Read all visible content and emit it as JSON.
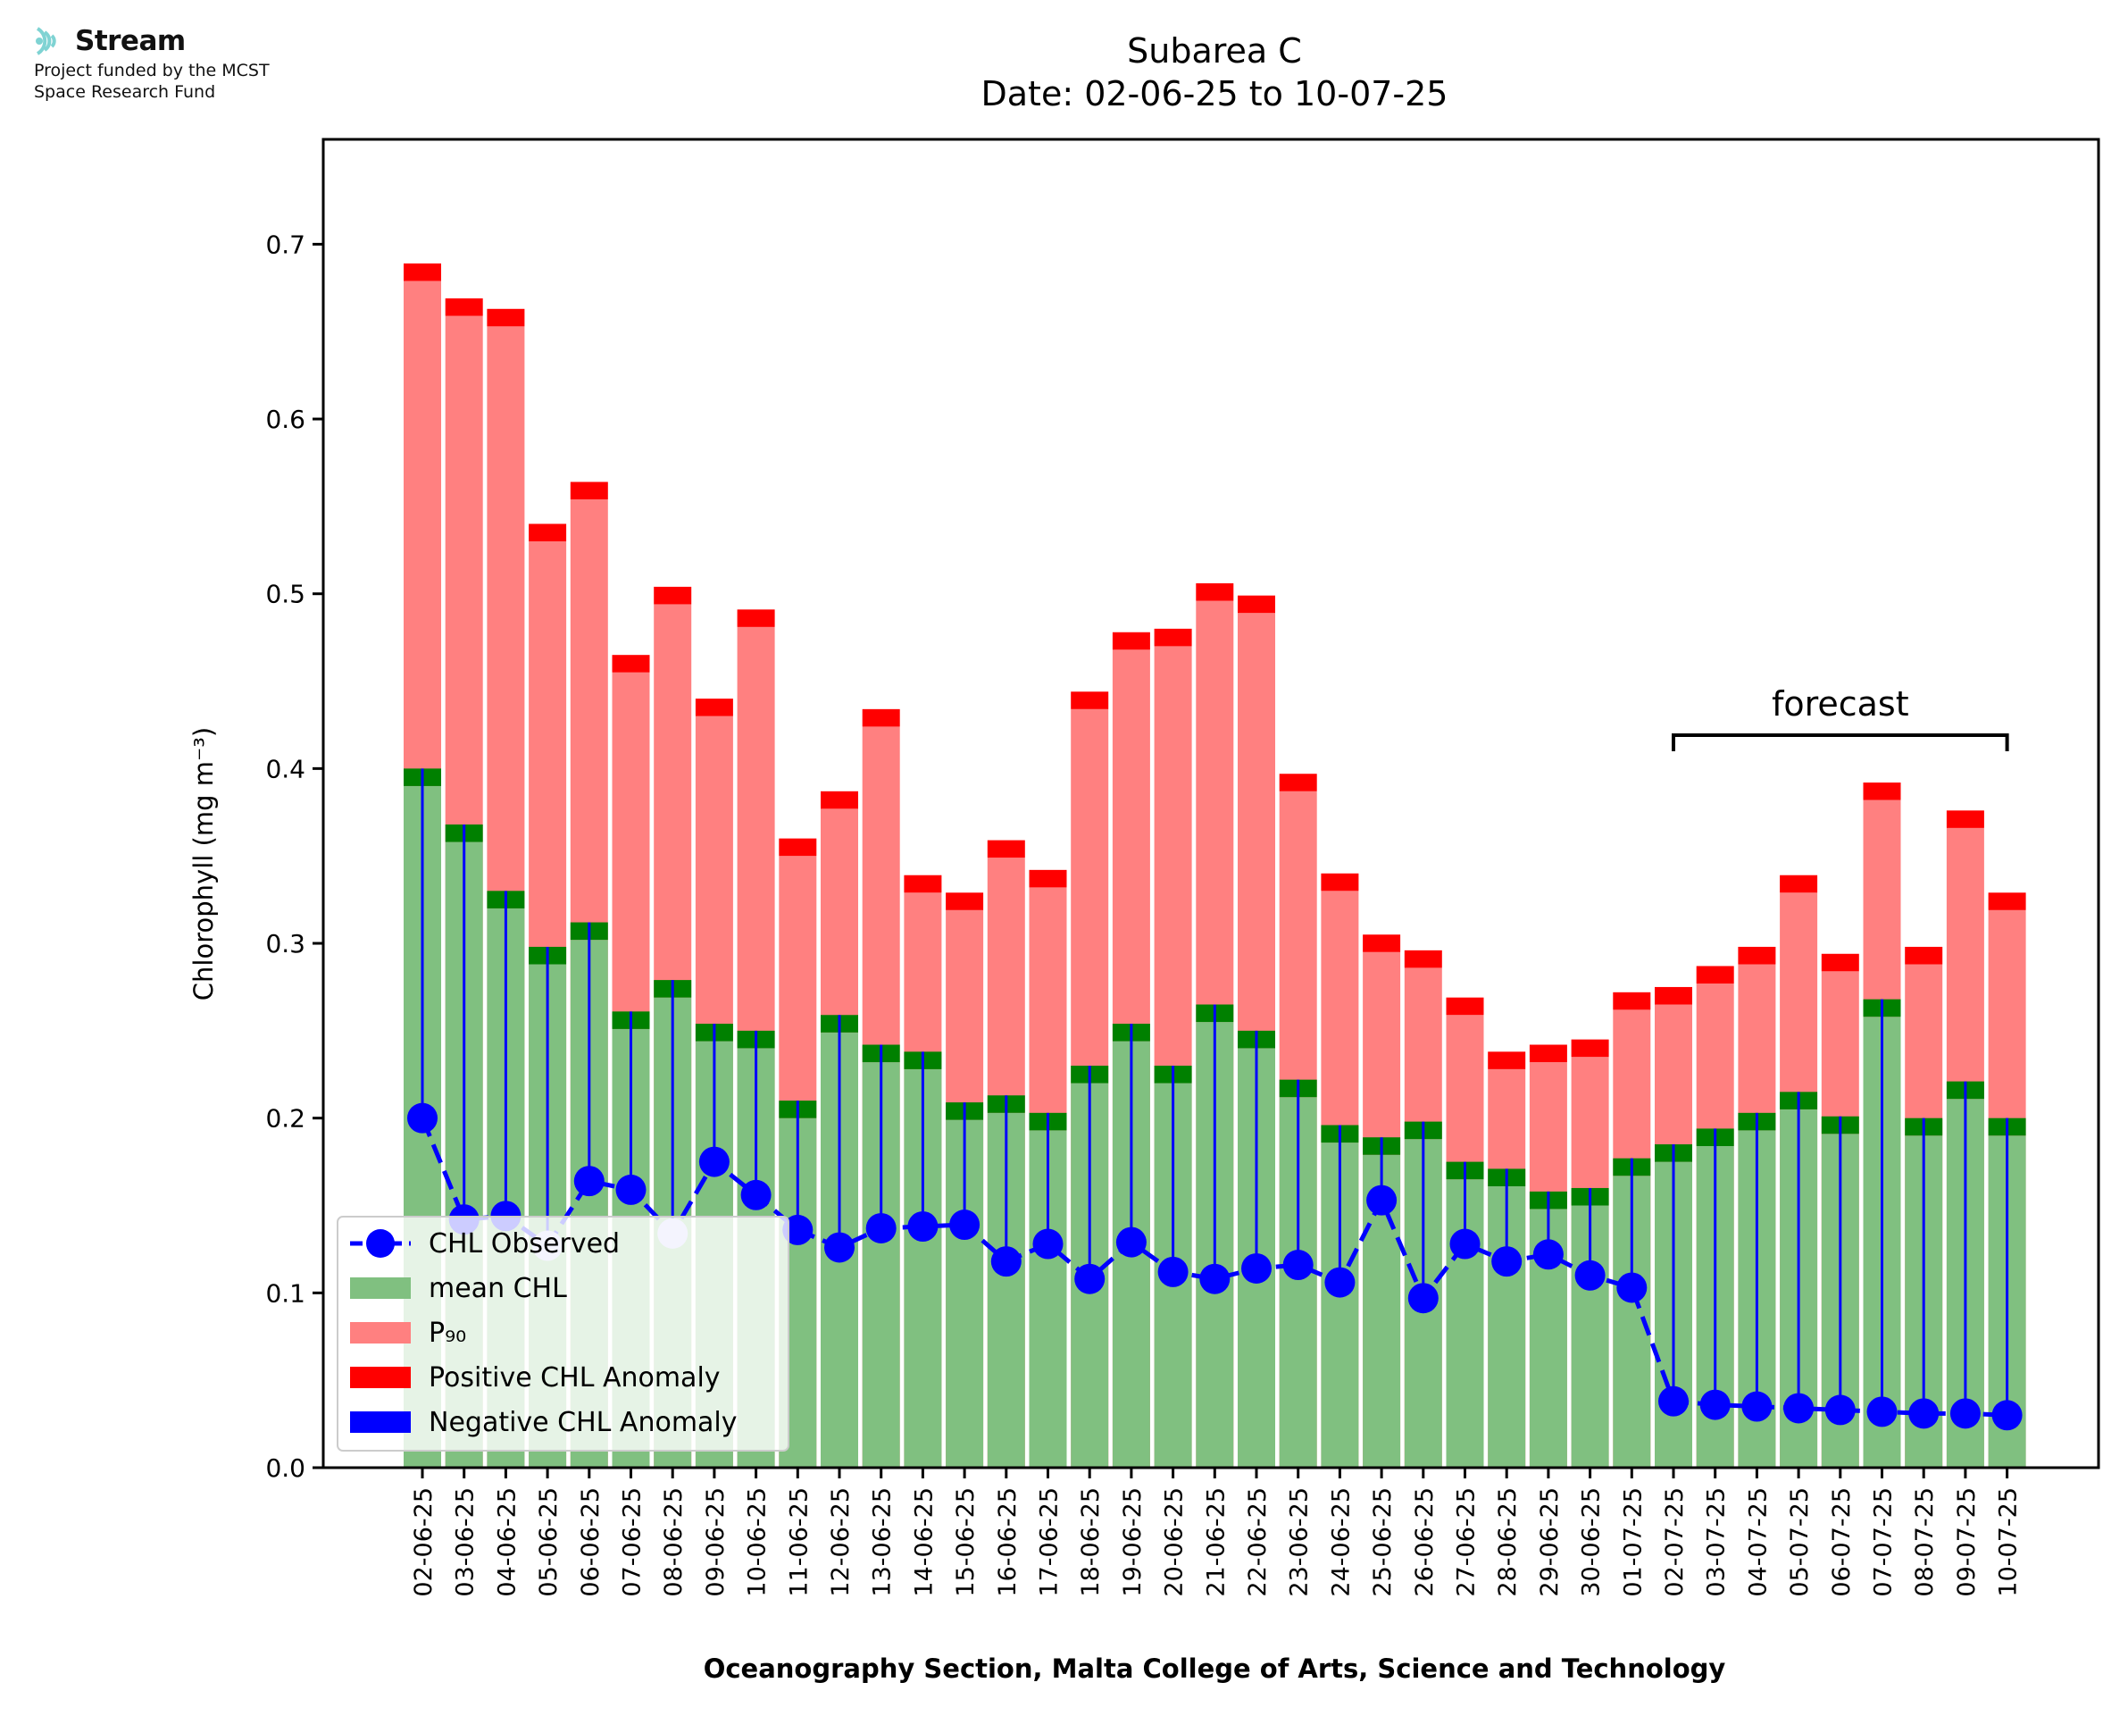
{
  "logo": {
    "name": "Stream",
    "line1": "Project funded by the MCST",
    "line2": "Space Research Fund",
    "color": "#7fd3d3"
  },
  "chart_data": {
    "type": "bar",
    "title": "Subarea C",
    "subtitle": "Date: 02-06-25 to 10-07-25",
    "xlabel": "Oceanography Section, Malta College of Arts, Science and Technology",
    "ylabel": "Chlorophyll (mg m⁻³)",
    "ylim": [
      0,
      0.76
    ],
    "yticks": [
      0.0,
      0.1,
      0.2,
      0.3,
      0.4,
      0.5,
      0.6,
      0.7
    ],
    "ytick_labels": [
      "0.0",
      "0.1",
      "0.2",
      "0.3",
      "0.4",
      "0.5",
      "0.6",
      "0.7"
    ],
    "grid": false,
    "legend_position": "lower-left",
    "forecast_label": "forecast",
    "forecast_range": [
      "02-07-25",
      "10-07-25"
    ],
    "categories": [
      "02-06-25",
      "03-06-25",
      "04-06-25",
      "05-06-25",
      "06-06-25",
      "07-06-25",
      "08-06-25",
      "09-06-25",
      "10-06-25",
      "11-06-25",
      "12-06-25",
      "13-06-25",
      "14-06-25",
      "15-06-25",
      "16-06-25",
      "17-06-25",
      "18-06-25",
      "19-06-25",
      "20-06-25",
      "21-06-25",
      "22-06-25",
      "23-06-25",
      "24-06-25",
      "25-06-25",
      "26-06-25",
      "27-06-25",
      "28-06-25",
      "29-06-25",
      "30-06-25",
      "01-07-25",
      "02-07-25",
      "03-07-25",
      "04-07-25",
      "05-07-25",
      "06-07-25",
      "07-07-25",
      "08-07-25",
      "09-07-25",
      "10-07-25"
    ],
    "series": [
      {
        "name": "CHL Observed",
        "color": "#0000ff",
        "values": [
          0.2,
          0.142,
          0.144,
          0.127,
          0.164,
          0.159,
          0.134,
          0.175,
          0.156,
          0.136,
          0.126,
          0.137,
          0.138,
          0.139,
          0.118,
          0.128,
          0.108,
          0.129,
          0.112,
          0.108,
          0.114,
          0.116,
          0.106,
          0.153,
          0.097,
          0.128,
          0.118,
          0.122,
          0.11,
          0.103,
          0.038,
          0.036,
          0.035,
          0.034,
          0.033,
          0.032,
          0.031,
          0.031,
          0.03
        ]
      },
      {
        "name": "mean CHL",
        "color": "#80c080",
        "values": [
          0.4,
          0.368,
          0.33,
          0.298,
          0.312,
          0.261,
          0.279,
          0.254,
          0.25,
          0.21,
          0.259,
          0.242,
          0.238,
          0.209,
          0.213,
          0.203,
          0.23,
          0.254,
          0.23,
          0.265,
          0.25,
          0.222,
          0.196,
          0.189,
          0.198,
          0.175,
          0.171,
          0.158,
          0.16,
          0.177,
          0.185,
          0.194,
          0.203,
          0.215,
          0.201,
          0.268,
          0.2,
          0.221,
          0.2
        ]
      },
      {
        "name": "P₉₀",
        "color": "#ff8080",
        "values": [
          0.689,
          0.669,
          0.663,
          0.54,
          0.564,
          0.465,
          0.504,
          0.44,
          0.491,
          0.36,
          0.387,
          0.434,
          0.339,
          0.329,
          0.359,
          0.342,
          0.444,
          0.478,
          0.48,
          0.506,
          0.499,
          0.397,
          0.34,
          0.305,
          0.296,
          0.269,
          0.238,
          0.242,
          0.245,
          0.272,
          0.275,
          0.287,
          0.298,
          0.339,
          0.294,
          0.392,
          0.298,
          0.376,
          0.329
        ]
      },
      {
        "name": "Positive CHL Anomaly",
        "color": "#ff0000"
      },
      {
        "name": "Negative CHL Anomaly",
        "color": "#0000ff"
      }
    ],
    "colors": {
      "mean_cap": "#008000",
      "observed_line": "#0000ff",
      "faded_marker": "#c8c8f8",
      "anomaly_line": "#0000ff",
      "axis": "#000000"
    },
    "faded_points": [
      "05-06-25",
      "08-06-25"
    ]
  }
}
